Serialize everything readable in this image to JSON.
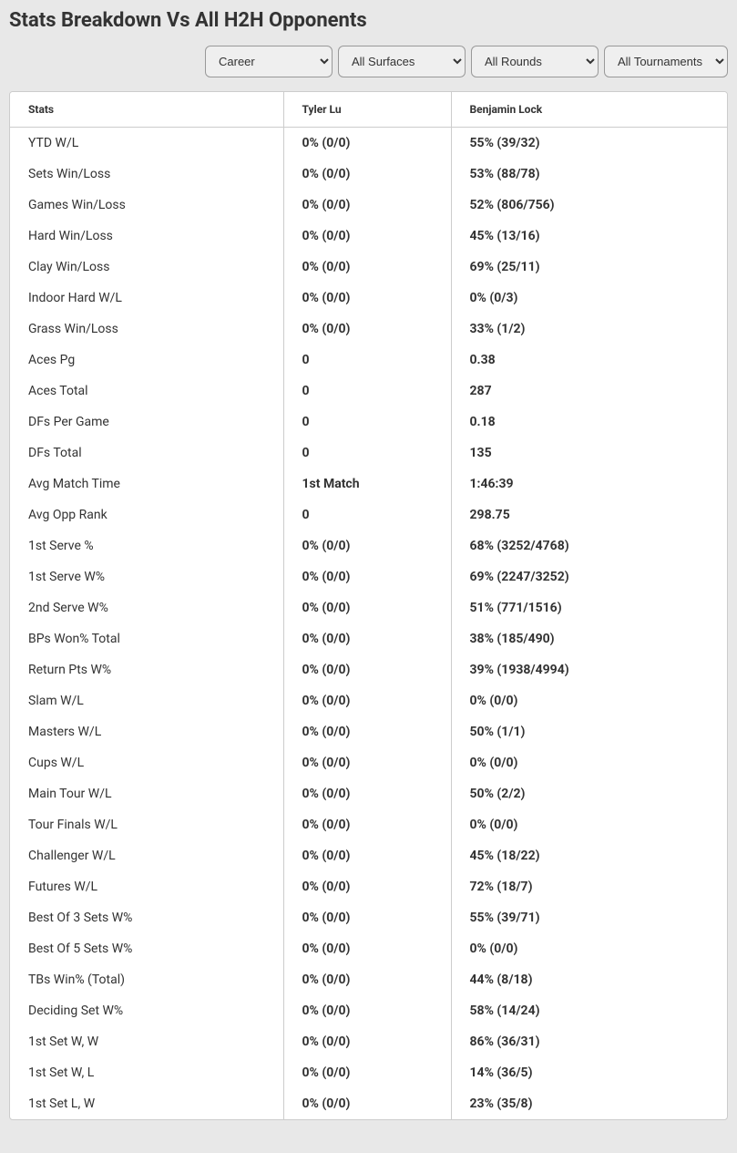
{
  "title": "Stats Breakdown Vs All H2H Opponents",
  "filters": {
    "period": "Career",
    "surface": "All Surfaces",
    "round": "All Rounds",
    "tournament": "All Tournaments"
  },
  "columns": {
    "stats": "Stats",
    "player1": "Tyler Lu",
    "player2": "Benjamin Lock"
  },
  "rows": [
    {
      "stat": "YTD W/L",
      "p1": "0% (0/0)",
      "p2": "55% (39/32)"
    },
    {
      "stat": "Sets Win/Loss",
      "p1": "0% (0/0)",
      "p2": "53% (88/78)"
    },
    {
      "stat": "Games Win/Loss",
      "p1": "0% (0/0)",
      "p2": "52% (806/756)"
    },
    {
      "stat": "Hard Win/Loss",
      "p1": "0% (0/0)",
      "p2": "45% (13/16)"
    },
    {
      "stat": "Clay Win/Loss",
      "p1": "0% (0/0)",
      "p2": "69% (25/11)"
    },
    {
      "stat": "Indoor Hard W/L",
      "p1": "0% (0/0)",
      "p2": "0% (0/3)"
    },
    {
      "stat": "Grass Win/Loss",
      "p1": "0% (0/0)",
      "p2": "33% (1/2)"
    },
    {
      "stat": "Aces Pg",
      "p1": "0",
      "p2": "0.38"
    },
    {
      "stat": "Aces Total",
      "p1": "0",
      "p2": "287"
    },
    {
      "stat": "DFs Per Game",
      "p1": "0",
      "p2": "0.18"
    },
    {
      "stat": "DFs Total",
      "p1": "0",
      "p2": "135"
    },
    {
      "stat": "Avg Match Time",
      "p1": "1st Match",
      "p2": "1:46:39"
    },
    {
      "stat": "Avg Opp Rank",
      "p1": "0",
      "p2": "298.75"
    },
    {
      "stat": "1st Serve %",
      "p1": "0% (0/0)",
      "p2": "68% (3252/4768)"
    },
    {
      "stat": "1st Serve W%",
      "p1": "0% (0/0)",
      "p2": "69% (2247/3252)"
    },
    {
      "stat": "2nd Serve W%",
      "p1": "0% (0/0)",
      "p2": "51% (771/1516)"
    },
    {
      "stat": "BPs Won% Total",
      "p1": "0% (0/0)",
      "p2": "38% (185/490)"
    },
    {
      "stat": "Return Pts W%",
      "p1": "0% (0/0)",
      "p2": "39% (1938/4994)"
    },
    {
      "stat": "Slam W/L",
      "p1": "0% (0/0)",
      "p2": "0% (0/0)"
    },
    {
      "stat": "Masters W/L",
      "p1": "0% (0/0)",
      "p2": "50% (1/1)"
    },
    {
      "stat": "Cups W/L",
      "p1": "0% (0/0)",
      "p2": "0% (0/0)"
    },
    {
      "stat": "Main Tour W/L",
      "p1": "0% (0/0)",
      "p2": "50% (2/2)"
    },
    {
      "stat": "Tour Finals W/L",
      "p1": "0% (0/0)",
      "p2": "0% (0/0)"
    },
    {
      "stat": "Challenger W/L",
      "p1": "0% (0/0)",
      "p2": "45% (18/22)"
    },
    {
      "stat": "Futures W/L",
      "p1": "0% (0/0)",
      "p2": "72% (18/7)"
    },
    {
      "stat": "Best Of 3 Sets W%",
      "p1": "0% (0/0)",
      "p2": "55% (39/71)"
    },
    {
      "stat": "Best Of 5 Sets W%",
      "p1": "0% (0/0)",
      "p2": "0% (0/0)"
    },
    {
      "stat": "TBs Win% (Total)",
      "p1": "0% (0/0)",
      "p2": "44% (8/18)"
    },
    {
      "stat": "Deciding Set W%",
      "p1": "0% (0/0)",
      "p2": "58% (14/24)"
    },
    {
      "stat": "1st Set W, W",
      "p1": "0% (0/0)",
      "p2": "86% (36/31)"
    },
    {
      "stat": "1st Set W, L",
      "p1": "0% (0/0)",
      "p2": "14% (36/5)"
    },
    {
      "stat": "1st Set L, W",
      "p1": "0% (0/0)",
      "p2": "23% (35/8)"
    }
  ]
}
